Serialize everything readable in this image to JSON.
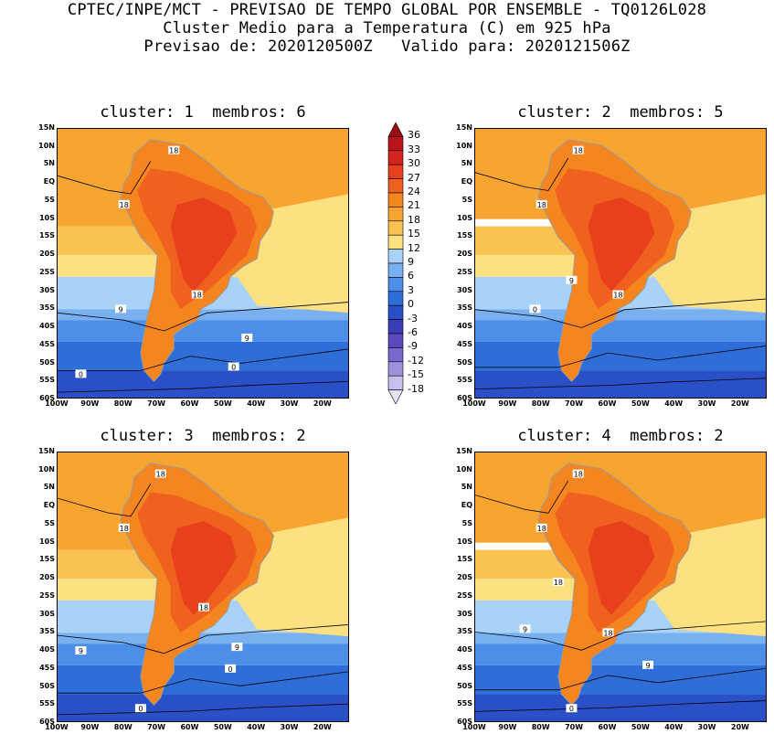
{
  "header": {
    "line1": "CPTEC/INPE/MCT - PREVISAO DE TEMPO GLOBAL POR ENSEMBLE - TQ0126L028",
    "line2": "Cluster Medio para a Temperatura (C) em 925 hPa",
    "line3": "Previsao de: 2020120500Z   Valido para: 2020121506Z"
  },
  "panels": [
    {
      "title": "cluster: 1  membros: 6",
      "contour_labels": [
        "18",
        "18",
        "18",
        "9",
        "9",
        "0",
        "0"
      ]
    },
    {
      "title": "cluster: 2  membros: 5",
      "contour_labels": [
        "18",
        "18",
        "18",
        "9",
        "0"
      ]
    },
    {
      "title": "cluster: 3  membros: 2",
      "contour_labels": [
        "18",
        "18",
        "18",
        "9",
        "9",
        "0",
        "0"
      ]
    },
    {
      "title": "cluster: 4  membros: 2",
      "contour_labels": [
        "18",
        "18",
        "18",
        "18",
        "9",
        "9",
        "0"
      ]
    }
  ],
  "lat_ticks": [
    "15N",
    "10N",
    "5N",
    "EQ",
    "5S",
    "10S",
    "15S",
    "20S",
    "25S",
    "30S",
    "35S",
    "40S",
    "45S",
    "50S",
    "55S",
    "60S"
  ],
  "lon_ticks": [
    "100W",
    "90W",
    "80W",
    "70W",
    "60W",
    "50W",
    "40W",
    "30W",
    "20W"
  ],
  "colorbar": {
    "labels": [
      "36",
      "33",
      "30",
      "27",
      "24",
      "21",
      "18",
      "15",
      "12",
      "9",
      "6",
      "3",
      "0",
      "-3",
      "-6",
      "-9",
      "-12",
      "-15",
      "-18"
    ],
    "colors": [
      "#9e0a12",
      "#b9141a",
      "#d4241e",
      "#e8401c",
      "#f0601e",
      "#f5851e",
      "#f7a530",
      "#fac250",
      "#fde080",
      "#a8d2f8",
      "#78b0f0",
      "#4c8ee8",
      "#2e6ed8",
      "#2a50c8",
      "#3a3cb8",
      "#5a4ac0",
      "#7a68cc",
      "#a090dc",
      "#c8c0ec",
      "#e4e0f6"
    ],
    "scale_min": -18,
    "scale_max": 36
  },
  "colors": {
    "ocean_warm": "#f7a530",
    "land_hot": "#e8401c",
    "cold_blue": "#2e6ed8"
  }
}
